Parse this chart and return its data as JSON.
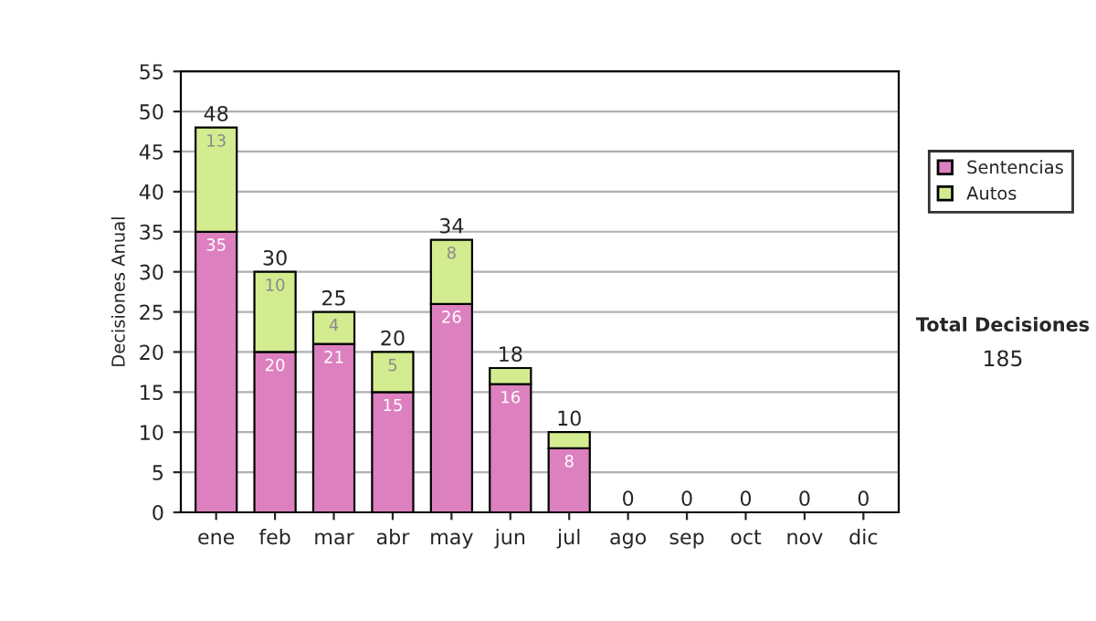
{
  "chart_data": {
    "type": "bar",
    "stacked": true,
    "ylabel": "Decisiones Anual",
    "categories": [
      "ene",
      "feb",
      "mar",
      "abr",
      "may",
      "jun",
      "jul",
      "ago",
      "sep",
      "oct",
      "nov",
      "dic"
    ],
    "series": [
      {
        "name": "Sentencias",
        "color": "#dd80c0",
        "values": [
          35,
          20,
          21,
          15,
          26,
          16,
          8,
          0,
          0,
          0,
          0,
          0
        ],
        "value_labels": [
          "35",
          "20",
          "21",
          "15",
          "26",
          "16",
          "8",
          null,
          null,
          null,
          null,
          null
        ]
      },
      {
        "name": "Autos",
        "color": "#d4ec90",
        "values": [
          13,
          10,
          4,
          5,
          8,
          2,
          2,
          0,
          0,
          0,
          0,
          0
        ],
        "value_labels": [
          "13",
          "10",
          "4",
          "5",
          "8",
          null,
          null,
          null,
          null,
          null,
          null,
          null
        ]
      }
    ],
    "totals": [
      "48",
      "30",
      "25",
      "20",
      "34",
      "18",
      "10",
      "0",
      "0",
      "0",
      "0",
      "0"
    ],
    "ylim": [
      0,
      55
    ],
    "yticks": [
      0,
      5,
      10,
      15,
      20,
      25,
      30,
      35,
      40,
      45,
      50,
      55
    ],
    "grid": "y",
    "legend": "right",
    "annotations": [
      "Total Decisiones",
      "185"
    ]
  }
}
